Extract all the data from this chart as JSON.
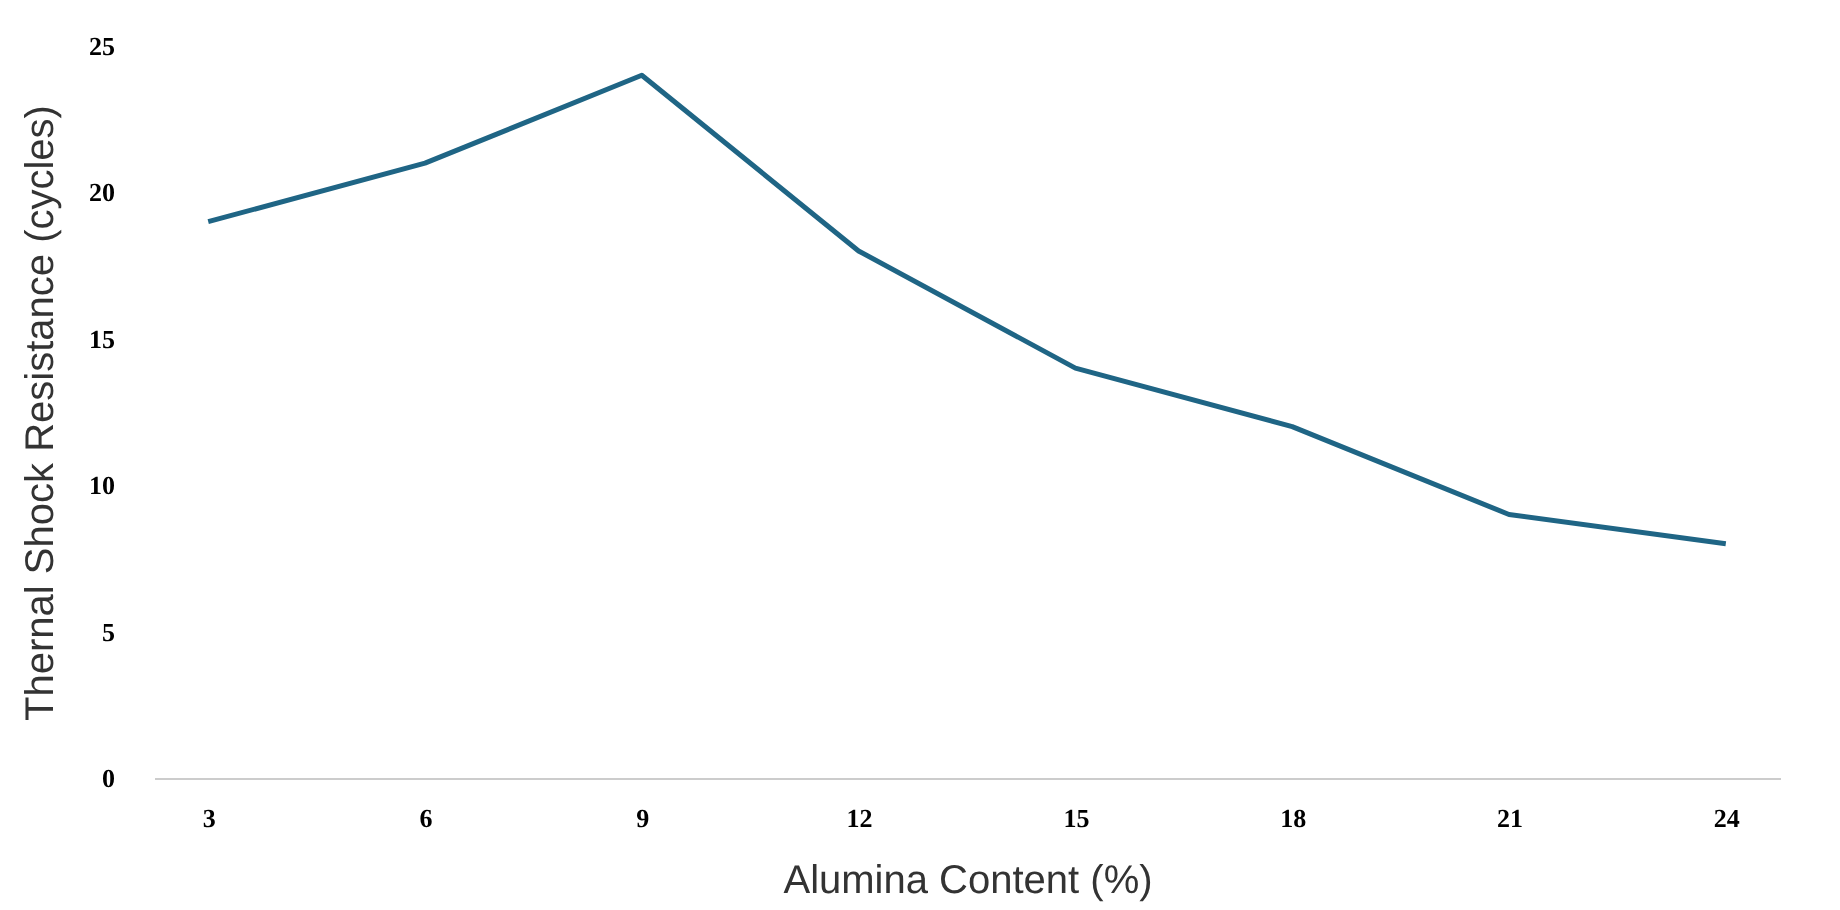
{
  "chart_data": {
    "type": "line",
    "xlabel": "Alumina Content (%)",
    "ylabel": "Thernal Shock Resistance (cycles)",
    "categories": [
      "3",
      "6",
      "9",
      "12",
      "15",
      "18",
      "21",
      "24"
    ],
    "series": [
      {
        "color": "#1f6585",
        "values": [
          19,
          21,
          24,
          18,
          14,
          12,
          9,
          8
        ]
      }
    ],
    "ylim": [
      0,
      25
    ],
    "yticks": [
      0,
      5,
      10,
      15,
      20,
      25
    ],
    "grid": false,
    "marker": "none",
    "line_style": "solid"
  }
}
